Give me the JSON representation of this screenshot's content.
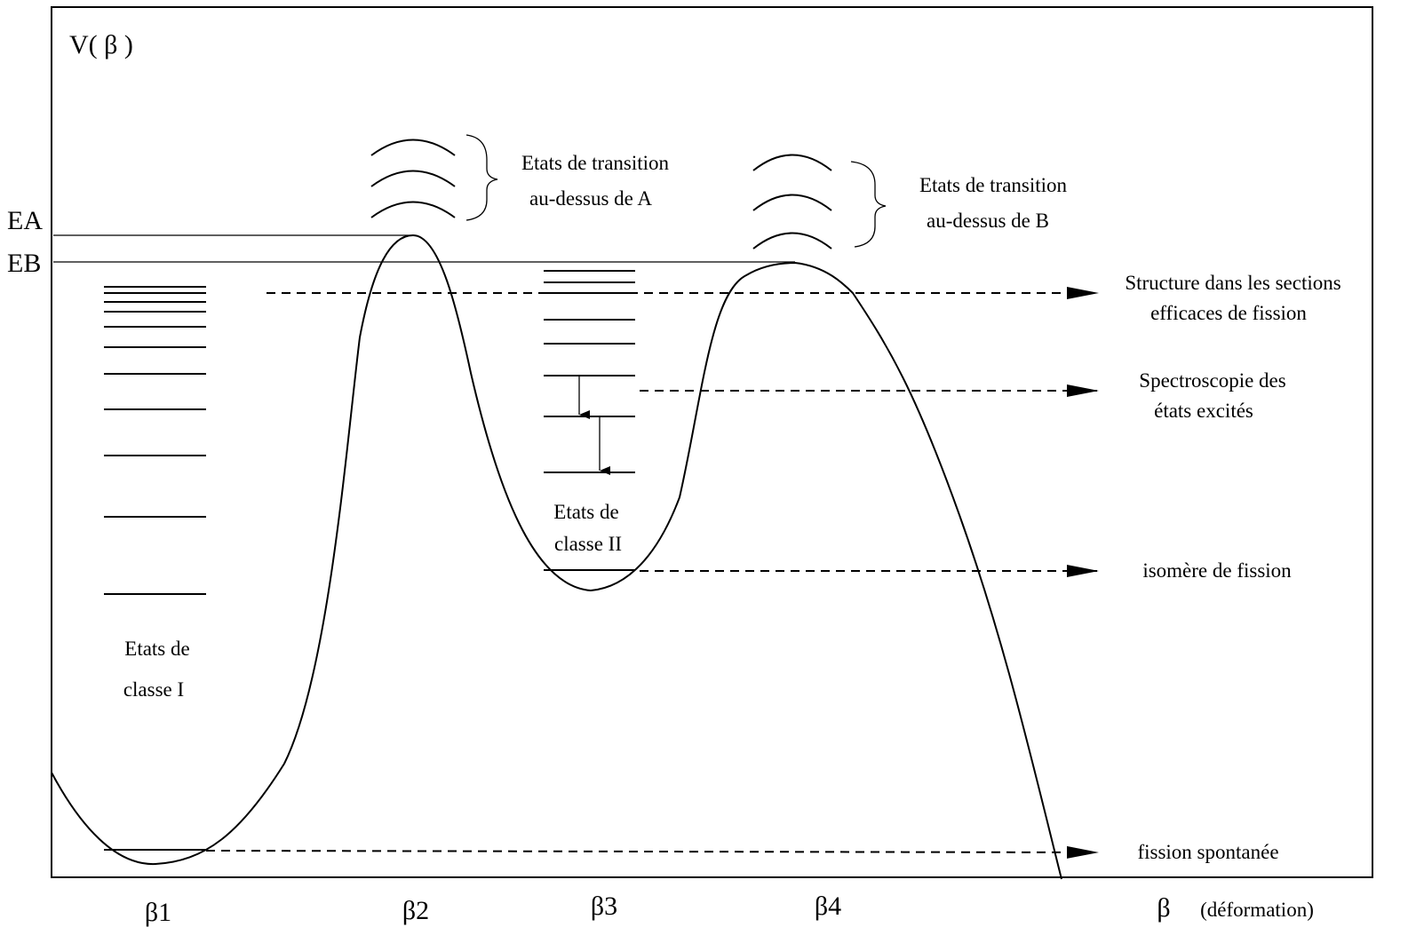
{
  "axis": {
    "y_label": "V( β )",
    "x_label": "β",
    "x_unit": "(déformation)",
    "ticks": [
      "β1",
      "β2",
      "β3",
      "β4"
    ]
  },
  "energies": {
    "EA": "EA",
    "EB": "EB"
  },
  "annotations": {
    "transition_A": [
      "Etats de transition",
      "au-dessus de A"
    ],
    "transition_B": [
      "Etats de transition",
      "au-dessus de B"
    ],
    "structure": [
      "Structure dans les sections",
      "efficaces de fission"
    ],
    "spectroscopy": [
      "Spectroscopie des",
      "états excités"
    ],
    "isomer": "isomère de fission",
    "spontaneous": "fission spontanée",
    "class_I": [
      "Etats de",
      "classe I"
    ],
    "class_II": [
      "Etats de",
      "classe II"
    ]
  }
}
